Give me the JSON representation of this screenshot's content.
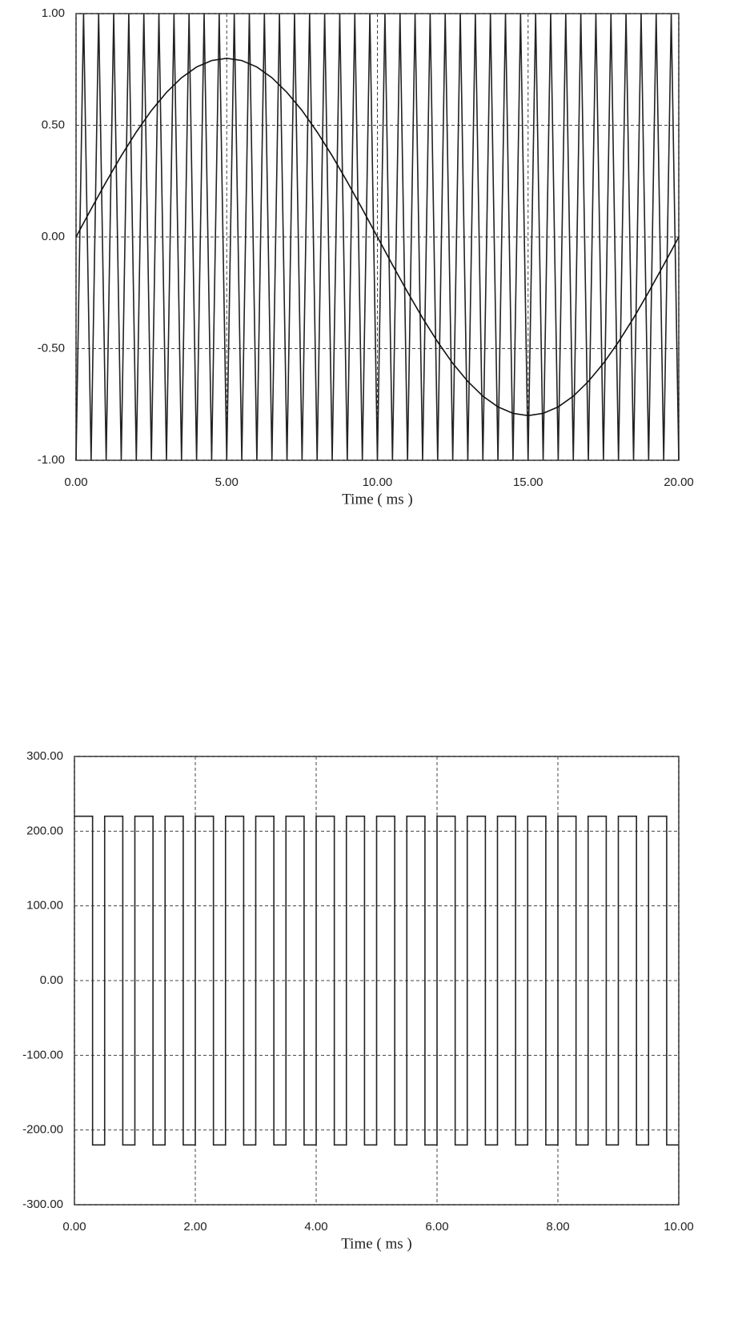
{
  "chart_data": [
    {
      "type": "line",
      "xlabel": "Time ( ms )",
      "xlim": [
        0,
        20
      ],
      "ylim": [
        -1,
        1
      ],
      "grid": true,
      "xticks": [
        {
          "value": 0,
          "label": "0.00"
        },
        {
          "value": 5,
          "label": "5.00"
        },
        {
          "value": 10,
          "label": "10.00"
        },
        {
          "value": 15,
          "label": "15.00"
        },
        {
          "value": 20,
          "label": "20.00"
        }
      ],
      "yticks": [
        {
          "value": 1,
          "label": "1.00"
        },
        {
          "value": 0.5,
          "label": "0.50"
        },
        {
          "value": 0,
          "label": "0.00"
        },
        {
          "value": -0.5,
          "label": "-0.50"
        },
        {
          "value": -1,
          "label": "-1.00"
        }
      ],
      "series": [
        {
          "color": "#222222",
          "x": [
            0,
            0.25,
            0.5,
            0.75,
            1,
            1.25,
            1.5,
            1.75,
            2,
            2.25,
            2.5,
            2.75,
            3,
            3.25,
            3.5,
            3.75,
            4,
            4.25,
            4.5,
            4.75,
            5,
            5.25,
            5.5,
            5.75,
            6,
            6.25,
            6.5,
            6.75,
            7,
            7.25,
            7.5,
            7.75,
            8,
            8.25,
            8.5,
            8.75,
            9,
            9.25,
            9.5,
            9.75,
            10,
            10.25,
            10.5,
            10.75,
            11,
            11.25,
            11.5,
            11.75,
            12,
            12.25,
            12.5,
            12.75,
            13,
            13.25,
            13.5,
            13.75,
            14,
            14.25,
            14.5,
            14.75,
            15,
            15.25,
            15.5,
            15.75,
            16,
            16.25,
            16.5,
            16.75,
            17,
            17.25,
            17.5,
            17.75,
            18,
            18.25,
            18.5,
            18.75,
            19,
            19.25,
            19.5,
            19.75,
            20
          ],
          "values": [
            -1,
            1,
            -1,
            1,
            -1,
            1,
            -1,
            1,
            -1,
            1,
            -1,
            1,
            -1,
            1,
            -1,
            1,
            -1,
            1,
            -1,
            1,
            -1,
            1,
            -1,
            1,
            -1,
            1,
            -1,
            1,
            -1,
            1,
            -1,
            1,
            -1,
            1,
            -1,
            1,
            -1,
            1,
            -1,
            1,
            -1,
            1,
            -1,
            1,
            -1,
            1,
            -1,
            1,
            -1,
            1,
            -1,
            1,
            -1,
            1,
            -1,
            1,
            -1,
            1,
            -1,
            1,
            -1,
            1,
            -1,
            1,
            -1,
            1,
            -1,
            1,
            -1,
            1,
            -1,
            1,
            -1,
            1,
            -1,
            1,
            -1,
            1,
            -1,
            1,
            -1
          ]
        },
        {
          "color": "#111111",
          "x": [
            0,
            0.5,
            1,
            1.5,
            2,
            2.5,
            3,
            3.5,
            4,
            4.5,
            5,
            5.5,
            6,
            6.5,
            7,
            7.5,
            8,
            8.5,
            9,
            9.5,
            10,
            10.5,
            11,
            11.5,
            12,
            12.5,
            13,
            13.5,
            14,
            14.5,
            15,
            15.5,
            16,
            16.5,
            17,
            17.5,
            18,
            18.5,
            19,
            19.5,
            20
          ],
          "values": [
            0,
            0.125,
            0.247,
            0.363,
            0.47,
            0.566,
            0.647,
            0.713,
            0.761,
            0.79,
            0.8,
            0.79,
            0.761,
            0.713,
            0.647,
            0.566,
            0.47,
            0.363,
            0.247,
            0.125,
            0,
            -0.125,
            -0.247,
            -0.363,
            -0.47,
            -0.566,
            -0.647,
            -0.713,
            -0.761,
            -0.79,
            -0.8,
            -0.79,
            -0.761,
            -0.713,
            -0.647,
            -0.566,
            -0.47,
            -0.363,
            -0.247,
            -0.125,
            0
          ]
        }
      ]
    },
    {
      "type": "line",
      "xlabel": "Time ( ms )",
      "xlim": [
        0,
        10
      ],
      "ylim": [
        -300,
        300
      ],
      "grid": true,
      "xticks": [
        {
          "value": 0,
          "label": "0.00"
        },
        {
          "value": 2,
          "label": "2.00"
        },
        {
          "value": 4,
          "label": "4.00"
        },
        {
          "value": 6,
          "label": "6.00"
        },
        {
          "value": 8,
          "label": "8.00"
        },
        {
          "value": 10,
          "label": "10.00"
        }
      ],
      "yticks": [
        {
          "value": 300,
          "label": "300.00"
        },
        {
          "value": 200,
          "label": "200.00"
        },
        {
          "value": 100,
          "label": "100.00"
        },
        {
          "value": 0,
          "label": "0.00"
        },
        {
          "value": -100,
          "label": "-100.00"
        },
        {
          "value": -200,
          "label": "-200.00"
        },
        {
          "value": -300,
          "label": "-300.00"
        }
      ],
      "series": [
        {
          "color": "#222222",
          "x": [
            0,
            0.3,
            0.3,
            0.5,
            0.5,
            0.8,
            0.8,
            1,
            1,
            1.3,
            1.3,
            1.5,
            1.5,
            1.8,
            1.8,
            2,
            2,
            2.3,
            2.3,
            2.5,
            2.5,
            2.8,
            2.8,
            3,
            3,
            3.3,
            3.3,
            3.5,
            3.5,
            3.8,
            3.8,
            4,
            4,
            4.3,
            4.3,
            4.5,
            4.5,
            4.8,
            4.8,
            5,
            5,
            5.3,
            5.3,
            5.5,
            5.5,
            5.8,
            5.8,
            6,
            6,
            6.3,
            6.3,
            6.5,
            6.5,
            6.8,
            6.8,
            7,
            7,
            7.3,
            7.3,
            7.5,
            7.5,
            7.8,
            7.8,
            8,
            8,
            8.3,
            8.3,
            8.5,
            8.5,
            8.8,
            8.8,
            9,
            9,
            9.3,
            9.3,
            9.5,
            9.5,
            9.8,
            9.8,
            10
          ],
          "values": [
            220,
            220,
            -220,
            -220,
            220,
            220,
            -220,
            -220,
            220,
            220,
            -220,
            -220,
            220,
            220,
            -220,
            -220,
            220,
            220,
            -220,
            -220,
            220,
            220,
            -220,
            -220,
            220,
            220,
            -220,
            -220,
            220,
            220,
            -220,
            -220,
            220,
            220,
            -220,
            -220,
            220,
            220,
            -220,
            -220,
            220,
            220,
            -220,
            -220,
            220,
            220,
            -220,
            -220,
            220,
            220,
            -220,
            -220,
            220,
            220,
            -220,
            -220,
            220,
            220,
            -220,
            -220,
            220,
            220,
            -220,
            -220,
            220,
            220,
            -220,
            -220,
            220,
            220,
            -220,
            -220,
            220,
            220,
            -220,
            -220,
            220,
            220,
            -220,
            -220
          ]
        }
      ]
    }
  ]
}
